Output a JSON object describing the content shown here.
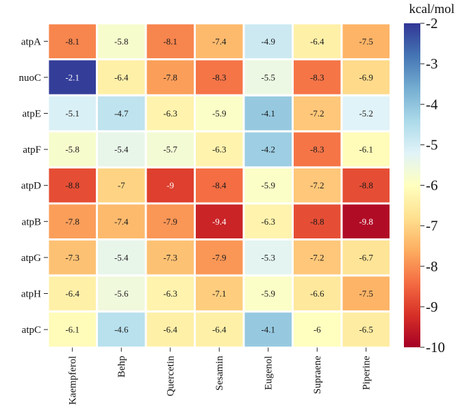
{
  "chart_data": {
    "type": "heatmap",
    "rows": [
      "atpA",
      "nuoC",
      "atpE",
      "atpF",
      "atpD",
      "atpB",
      "atpG",
      "atpH",
      "atpC"
    ],
    "columns": [
      "Kaempferol",
      "Behp",
      "Quercetin",
      "Sesamin",
      "Eugenol",
      "Supraene",
      "Piperine"
    ],
    "values": [
      [
        -8.1,
        -5.8,
        -8.1,
        -7.4,
        -4.9,
        -6.4,
        -7.5
      ],
      [
        -2.1,
        -6.4,
        -7.8,
        -8.3,
        -5.5,
        -8.3,
        -6.9
      ],
      [
        -5.1,
        -4.7,
        -6.3,
        -5.9,
        -4.1,
        -7.2,
        -5.2
      ],
      [
        -5.8,
        -5.4,
        -5.7,
        -6.3,
        -4.2,
        -8.3,
        -6.1
      ],
      [
        -8.8,
        -7,
        -9,
        -8.4,
        -5.9,
        -7.2,
        -8.8
      ],
      [
        -7.8,
        -7.4,
        -7.9,
        -9.4,
        -6.3,
        -8.8,
        -9.8
      ],
      [
        -7.3,
        -5.4,
        -7.3,
        -7.9,
        -5.3,
        -7.2,
        -6.7
      ],
      [
        -6.4,
        -5.6,
        -6.3,
        -7.1,
        -5.9,
        -6.6,
        -7.5
      ],
      [
        -6.1,
        -4.6,
        -6.4,
        -6.4,
        -4.1,
        -6,
        -6.5
      ]
    ],
    "value_labels": [
      [
        "-8.1",
        "-5.8",
        "-8.1",
        "-7.4",
        "-4.9",
        "-6.4",
        "-7.5"
      ],
      [
        "-2.1",
        "-6.4",
        "-7.8",
        "-8.3",
        "-5.5",
        "-8.3",
        "-6.9"
      ],
      [
        "-5.1",
        "-4.7",
        "-6.3",
        "-5.9",
        "-4.1",
        "-7.2",
        "-5.2"
      ],
      [
        "-5.8",
        "-5.4",
        "-5.7",
        "-6.3",
        "-4.2",
        "-8.3",
        "-6.1"
      ],
      [
        "-8.8",
        "-7",
        "-9",
        "-8.4",
        "-5.9",
        "-7.2",
        "-8.8"
      ],
      [
        "-7.8",
        "-7.4",
        "-7.9",
        "-9.4",
        "-6.3",
        "-8.8",
        "-9.8"
      ],
      [
        "-7.3",
        "-5.4",
        "-7.3",
        "-7.9",
        "-5.3",
        "-7.2",
        "-6.7"
      ],
      [
        "-6.4",
        "-5.6",
        "-6.3",
        "-7.1",
        "-5.9",
        "-6.6",
        "-7.5"
      ],
      [
        "-6.1",
        "-4.6",
        "-6.4",
        "-6.4",
        "-4.1",
        "-6",
        "-6.5"
      ]
    ],
    "colorbar": {
      "title": "kcal/mol",
      "vmin": -10,
      "vmax": -2,
      "ticks": [
        -2,
        -3,
        -4,
        -5,
        -6,
        -7,
        -8,
        -9,
        -10
      ],
      "tick_labels": [
        "-2",
        "-3",
        "-4",
        "-5",
        "-6",
        "-7",
        "-8",
        "-9",
        "-10"
      ],
      "colormap": "RdYlBu",
      "stops": [
        "#a50026",
        "#d73027",
        "#f46d43",
        "#fdae61",
        "#fee090",
        "#ffffbf",
        "#e0f3f8",
        "#abd9e9",
        "#74add1",
        "#4575b4",
        "#313695"
      ]
    },
    "grid_color": "#ffffff",
    "text_color": "#1a1a1a",
    "text_color_dark_cells": "#ffffff"
  }
}
